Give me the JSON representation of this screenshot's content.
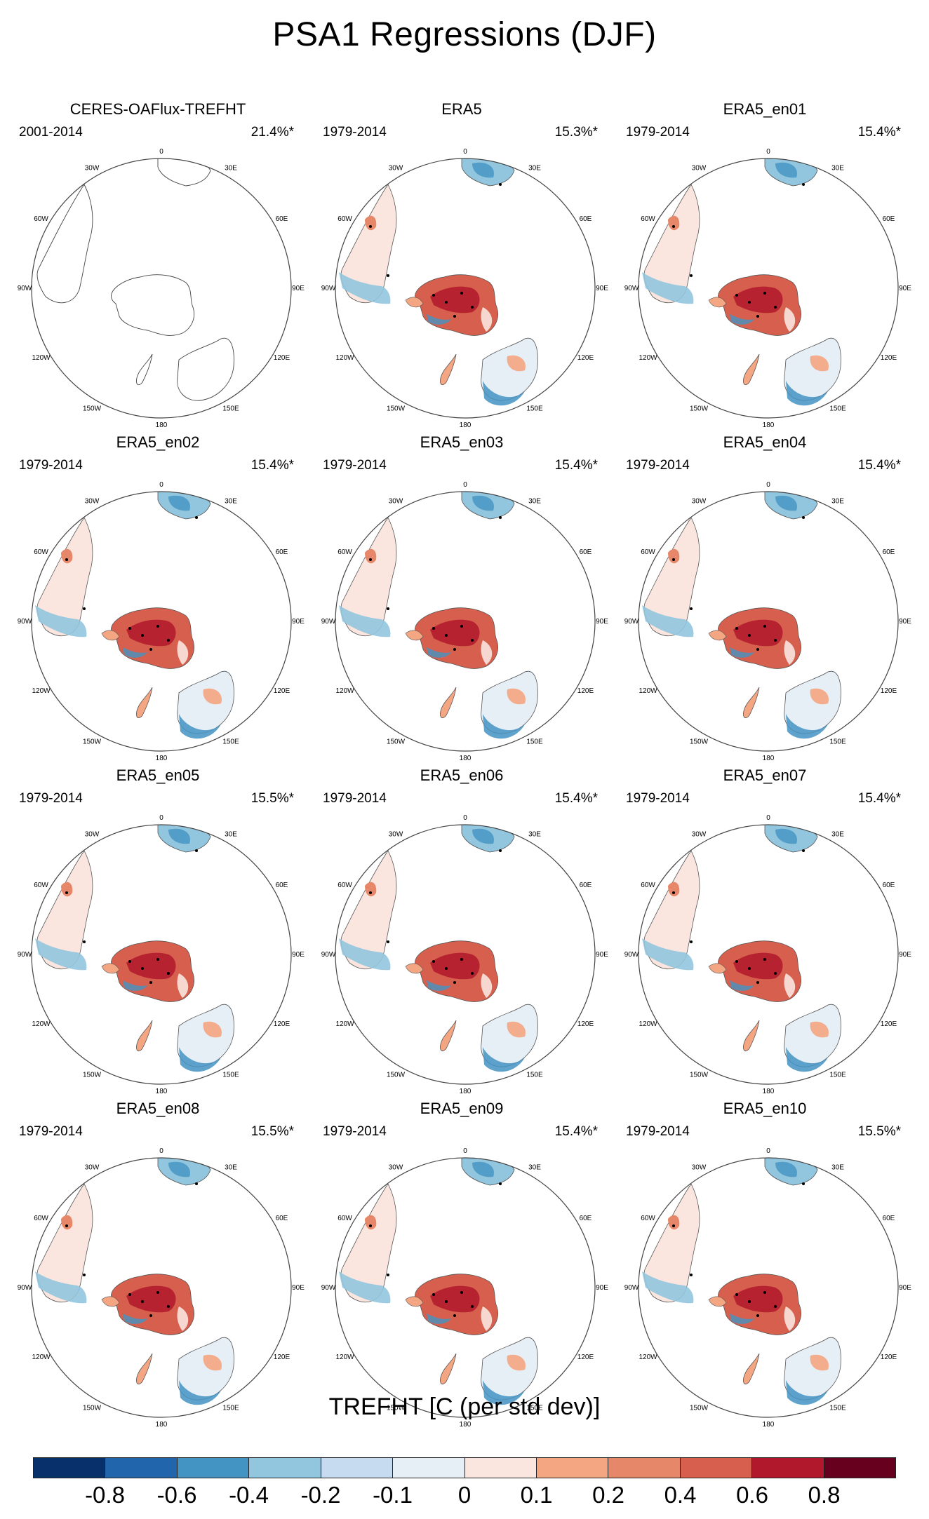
{
  "figure": {
    "title": "PSA1 Regressions (DJF)"
  },
  "longitude_labels": [
    "0",
    "30E",
    "60E",
    "90E",
    "120E",
    "150E",
    "180",
    "150W",
    "120W",
    "90W",
    "60W",
    "30W"
  ],
  "panels": [
    {
      "name": "CERES-OAFlux-TREFHT",
      "years": "2001-2014",
      "pct": "21.4%*",
      "has_data": false
    },
    {
      "name": "ERA5",
      "years": "1979-2014",
      "pct": "15.3%*",
      "has_data": true
    },
    {
      "name": "ERA5_en01",
      "years": "1979-2014",
      "pct": "15.4%*",
      "has_data": true
    },
    {
      "name": "ERA5_en02",
      "years": "1979-2014",
      "pct": "15.4%*",
      "has_data": true
    },
    {
      "name": "ERA5_en03",
      "years": "1979-2014",
      "pct": "15.4%*",
      "has_data": true
    },
    {
      "name": "ERA5_en04",
      "years": "1979-2014",
      "pct": "15.4%*",
      "has_data": true
    },
    {
      "name": "ERA5_en05",
      "years": "1979-2014",
      "pct": "15.5%*",
      "has_data": true
    },
    {
      "name": "ERA5_en06",
      "years": "1979-2014",
      "pct": "15.4%*",
      "has_data": true
    },
    {
      "name": "ERA5_en07",
      "years": "1979-2014",
      "pct": "15.4%*",
      "has_data": true
    },
    {
      "name": "ERA5_en08",
      "years": "1979-2014",
      "pct": "15.5%*",
      "has_data": true
    },
    {
      "name": "ERA5_en09",
      "years": "1979-2014",
      "pct": "15.4%*",
      "has_data": true
    },
    {
      "name": "ERA5_en10",
      "years": "1979-2014",
      "pct": "15.5%*",
      "has_data": true
    }
  ],
  "colorbar": {
    "title": "TREFHT [C (per std dev)]",
    "tick_labels": [
      "-0.8",
      "-0.6",
      "-0.4",
      "-0.2",
      "-0.1",
      "0",
      "0.1",
      "0.2",
      "0.4",
      "0.6",
      "0.8"
    ],
    "colors": [
      "#08306b",
      "#2166ac",
      "#4393c3",
      "#92c5de",
      "#c6dbef",
      "#e6eef6",
      "#fbe6df",
      "#f4a582",
      "#e7876a",
      "#d6604d",
      "#b2182b",
      "#67001f"
    ]
  }
}
